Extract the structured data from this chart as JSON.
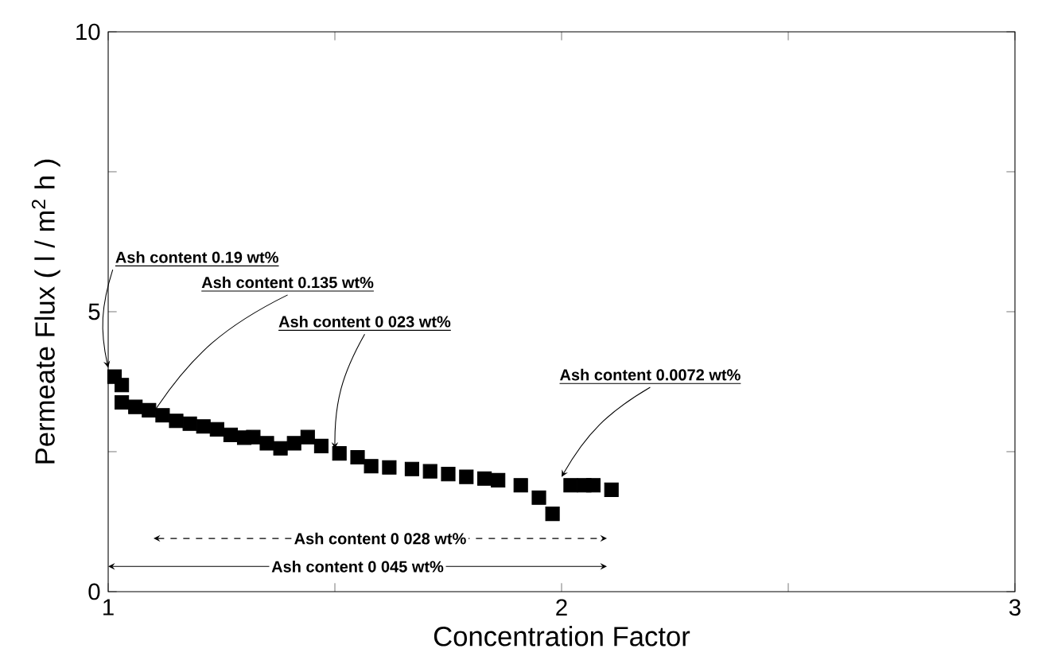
{
  "chart_data": {
    "type": "scatter",
    "xlabel": "Concentration Factor",
    "ylabel": "Permeate Flux ( l / m$^{2}$ h )",
    "x": [
      1.014,
      1.03,
      1.03,
      1.06,
      1.09,
      1.12,
      1.15,
      1.18,
      1.21,
      1.24,
      1.27,
      1.3,
      1.32,
      1.35,
      1.38,
      1.41,
      1.44,
      1.47,
      1.51,
      1.55,
      1.58,
      1.62,
      1.67,
      1.71,
      1.75,
      1.79,
      1.83,
      1.86,
      1.91,
      1.95,
      1.98,
      2.02,
      2.05,
      2.07,
      2.11
    ],
    "values": [
      3.84,
      3.69,
      3.38,
      3.3,
      3.24,
      3.15,
      3.05,
      3.0,
      2.95,
      2.9,
      2.8,
      2.75,
      2.76,
      2.65,
      2.56,
      2.65,
      2.76,
      2.6,
      2.47,
      2.4,
      2.24,
      2.22,
      2.19,
      2.15,
      2.1,
      2.05,
      2.02,
      1.99,
      1.9,
      1.68,
      1.39,
      1.9,
      1.9,
      1.9,
      1.82
    ],
    "color": "#000000",
    "marker": "square",
    "xlim": [
      1,
      3
    ],
    "ylim": [
      0,
      10
    ],
    "xticks": [
      1,
      {
        "value": 1.5,
        "label": null
      },
      2,
      {
        "value": 2.5,
        "label": null
      },
      3
    ],
    "yticks": [
      0,
      {
        "value": 2.5,
        "label": null
      },
      5,
      {
        "value": 7.5,
        "label": null
      },
      10
    ],
    "annotations": [
      {
        "text": "Ash content 0.19 wt%",
        "x": 1.0,
        "y": 4.0
      },
      {
        "text": "Ash content 0.135 wt%",
        "x": 1.1,
        "y": 3.2
      },
      {
        "text": "Ash content 0 023 wt%",
        "x": 1.5,
        "y": 2.55
      },
      {
        "text": "Ash content 0.0072 wt%",
        "x": 2.0,
        "y": 2.05
      },
      "Ash content 0 028 wt%",
      "Ash content 0 045 wt%"
    ]
  }
}
